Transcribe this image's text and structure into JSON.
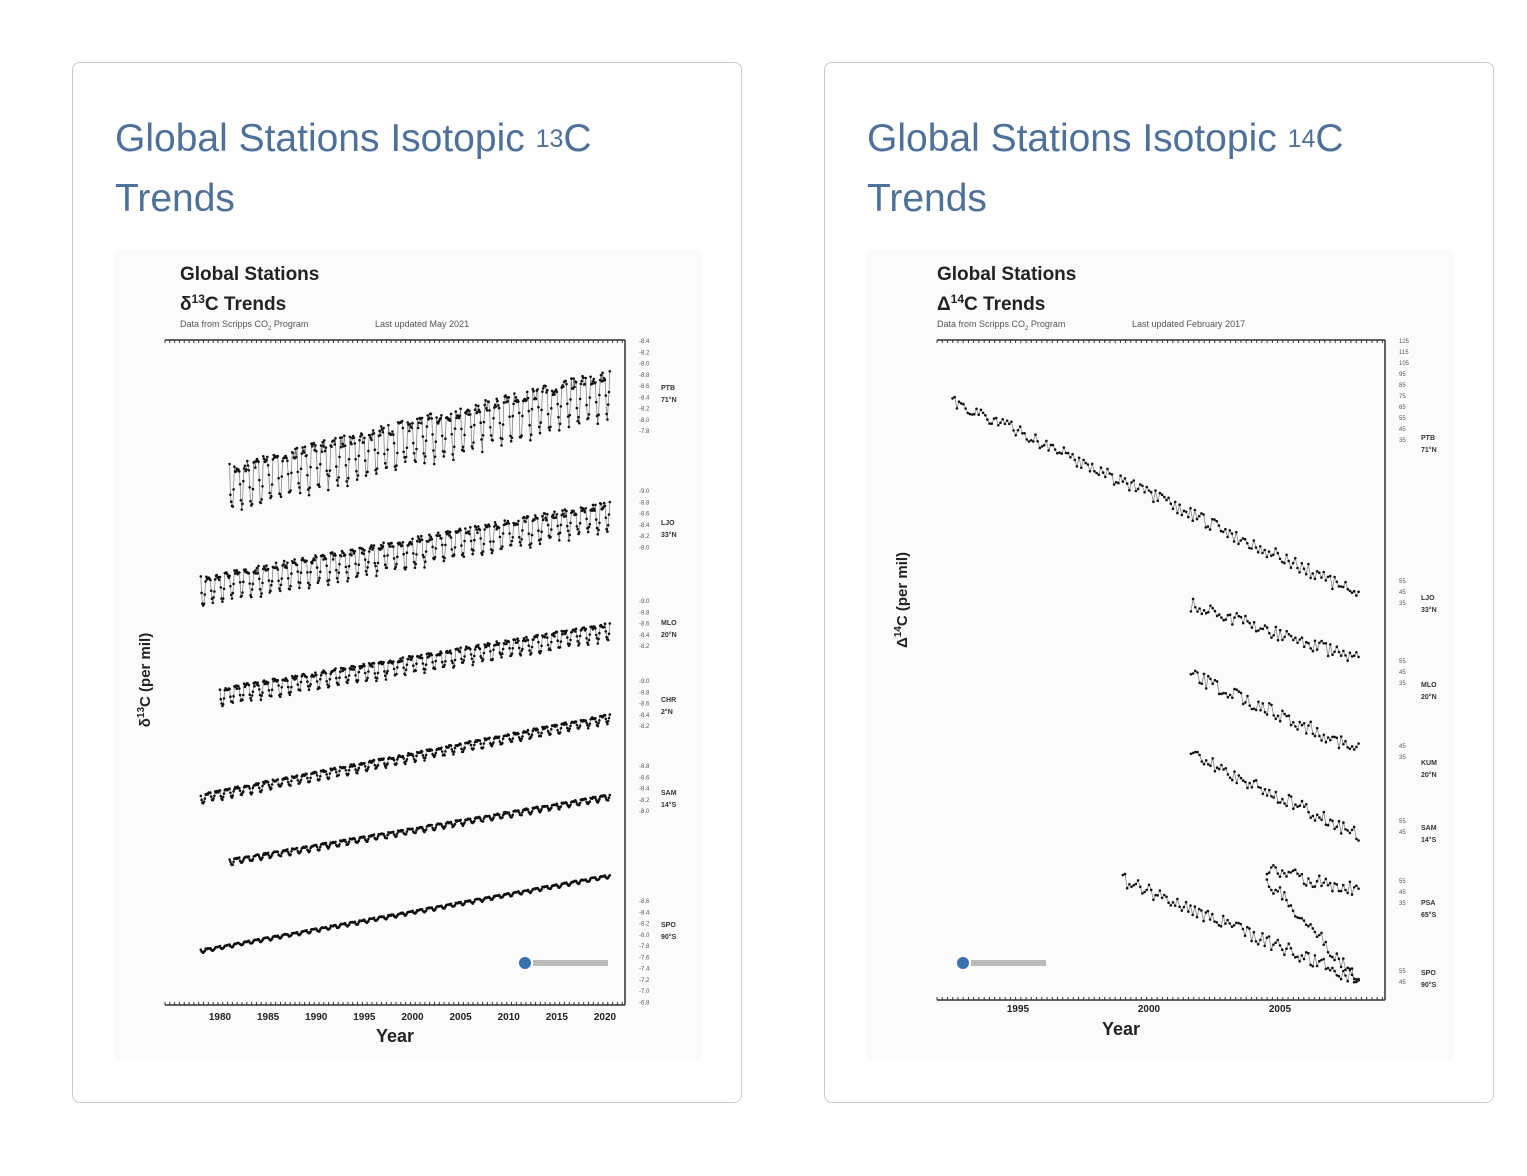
{
  "cards": [
    {
      "title_prefix": "Global Stations Isotopic ",
      "title_sup": "13",
      "title_suffix": "C Trends",
      "chart_data": {
        "type": "scatter",
        "title_line1": "Global Stations",
        "title_symbol": "δ",
        "title_sup": "13",
        "title_line2": "C Trends",
        "subtitle_source": "Data from Scripps CO",
        "subtitle_sub": "2",
        "subtitle_program": " Program",
        "subtitle_updated": "Last updated May 2021",
        "xlabel": "Year",
        "ylabel_symbol": "δ",
        "ylabel_sup": "13",
        "ylabel": "C (per mil)",
        "x_ticks": [
          "1980",
          "1985",
          "1990",
          "1995",
          "2000",
          "2005",
          "2010",
          "2015",
          "2020"
        ],
        "xlim": [
          1976.5,
          2021.5
        ],
        "stations": [
          {
            "name": "PTB",
            "lat": "71°N",
            "start": 1981,
            "end": 2020.5,
            "y0": -8.05,
            "y1": -8.65,
            "amp": 0.35,
            "ticks": [
              "-8.4",
              "-8.2",
              "-8.0",
              "-8.8",
              "-8.6",
              "-8.4",
              "-8.2",
              "-8.0",
              "-7.8"
            ]
          },
          {
            "name": "LJO",
            "lat": "33°N",
            "start": 1978,
            "end": 2020.5,
            "y0": -7.8,
            "y1": -8.5,
            "amp": 0.2,
            "ticks": [
              "-9.0",
              "-8.8",
              "-8.6",
              "-8.4",
              "-8.2",
              "-8.0"
            ]
          },
          {
            "name": "MLO",
            "lat": "20°N",
            "start": 1980,
            "end": 2020.5,
            "y0": -7.6,
            "y1": -8.4,
            "amp": 0.1,
            "ticks": [
              "-9.0",
              "-8.8",
              "-8.6",
              "-8.4",
              "-8.2"
            ]
          },
          {
            "name": "CHR",
            "lat": "2°N",
            "start": 1978,
            "end": 2020.5,
            "y0": -7.6,
            "y1": -8.4,
            "amp": 0.06,
            "ticks": [
              "-9.0",
              "-8.8",
              "-8.6",
              "-8.4",
              "-8.2"
            ]
          },
          {
            "name": "SAM",
            "lat": "14°S",
            "start": 1981,
            "end": 2020.5,
            "y0": -7.6,
            "y1": -8.4,
            "amp": 0.03,
            "ticks": [
              "-8.8",
              "-8.6",
              "-8.4",
              "-8.2",
              "-8.0"
            ]
          },
          {
            "name": "SPO",
            "lat": "90°S",
            "start": 1978,
            "end": 2020.5,
            "y0": -7.6,
            "y1": -8.4,
            "amp": 0.02,
            "ticks": [
              "-8.6",
              "-8.4",
              "-8.2",
              "-8.0",
              "-7.8",
              "-7.6",
              "-7.4",
              "-7.2",
              "-7.0",
              "-6.8"
            ]
          }
        ]
      }
    },
    {
      "title_prefix": "Global Stations Isotopic ",
      "title_sup": "14",
      "title_suffix": "C Trends",
      "chart_data": {
        "type": "scatter",
        "title_line1": "Global Stations",
        "title_symbol": "Δ",
        "title_sup": "14",
        "title_line2": "C Trends",
        "subtitle_source": "Data from Scripps CO",
        "subtitle_sub": "2",
        "subtitle_program": " Program",
        "subtitle_updated": "Last updated February 2017",
        "xlabel": "Year",
        "ylabel_symbol": "Δ",
        "ylabel_sup": "14",
        "ylabel": "C (per mil)",
        "x_ticks": [
          "1995",
          "2000",
          "2005"
        ],
        "xlim": [
          1992.3,
          2009.4
        ],
        "stations": [
          {
            "name": "PTB",
            "lat": "71°N",
            "start": 1992.5,
            "end": 2008,
            "y0": 135,
            "y1": 40,
            "ticks": [
              "125",
              "115",
              "105",
              "95",
              "85",
              "75",
              "65",
              "55",
              "45",
              "35"
            ]
          },
          {
            "name": "LJO",
            "lat": "33°N",
            "start": 2001.6,
            "end": 2008,
            "y0": 83,
            "y1": 40,
            "ticks": [
              "55",
              "45",
              "35"
            ]
          },
          {
            "name": "MLO",
            "lat": "20°N",
            "start": 2001.6,
            "end": 2008,
            "y0": 80,
            "y1": 35,
            "ticks": [
              "55",
              "45",
              "35"
            ]
          },
          {
            "name": "KUM",
            "lat": "20°N",
            "start": 2001.6,
            "end": 2008,
            "y0": 85,
            "y1": 35,
            "ticks": [
              "45",
              "35"
            ]
          },
          {
            "name": "SAM",
            "lat": "14°S",
            "start": 2004.5,
            "end": 2008,
            "y0": 60,
            "y1": 45,
            "ticks": [
              "55",
              "45"
            ]
          },
          {
            "name": "PSA",
            "lat": "65°S",
            "start": 2004.5,
            "end": 2008,
            "y0": 58,
            "y1": 45,
            "ticks": [
              "55",
              "45",
              "35"
            ]
          },
          {
            "name": "SPO",
            "lat": "90°S",
            "start": 1999,
            "end": 2008,
            "y0": 95,
            "y1": 48,
            "ticks": [
              "55",
              "45"
            ]
          }
        ]
      }
    }
  ]
}
